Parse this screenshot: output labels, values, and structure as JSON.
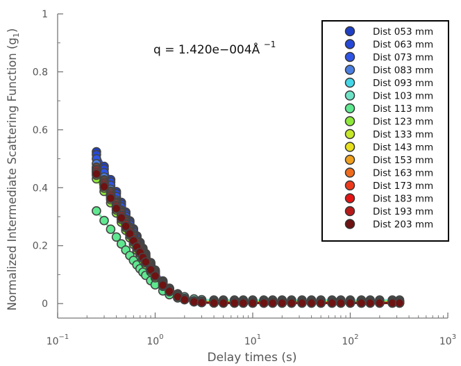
{
  "chart_data": {
    "type": "line",
    "xlabel": "Delay times (s)",
    "ylabel_main": "Normalized Intermediate Scattering Function (g",
    "ylabel_sub": "1",
    "ylabel_close": ")",
    "annotation_main": "q = 1.420e−004Å ",
    "annotation_sup": "−1",
    "xscale": "log",
    "xlim": [
      0.1,
      1000
    ],
    "ylim": [
      -0.05,
      1.0
    ],
    "x_ticks": [
      {
        "value": 0.1,
        "base": "10",
        "exp": "−1"
      },
      {
        "value": 1,
        "base": "10",
        "exp": "0"
      },
      {
        "value": 10,
        "base": "10",
        "exp": "1"
      },
      {
        "value": 100,
        "base": "10",
        "exp": "2"
      },
      {
        "value": 1000,
        "base": "10",
        "exp": "3"
      }
    ],
    "y_ticks": [
      {
        "value": 0,
        "label": "0"
      },
      {
        "value": 0.2,
        "label": "0.2"
      },
      {
        "value": 0.4,
        "label": "0.4"
      },
      {
        "value": 0.6,
        "label": "0.6"
      },
      {
        "value": 0.8,
        "label": "0.8"
      },
      {
        "value": 1,
        "label": "1"
      }
    ],
    "legend_position": "top-right",
    "x": [
      0.25,
      0.3,
      0.35,
      0.4,
      0.45,
      0.5,
      0.55,
      0.6,
      0.65,
      0.7,
      0.75,
      0.8,
      0.9,
      1.0,
      1.2,
      1.4,
      1.7,
      2.0,
      2.5,
      3.0,
      4.0,
      5.0,
      6.5,
      8.0,
      10,
      13,
      16,
      20,
      25,
      32,
      40,
      50,
      65,
      80,
      100,
      130,
      160,
      200,
      270,
      320
    ],
    "series": [
      {
        "name": "Dist 053 mm",
        "color": "#1e3fc4",
        "t0": 0.521,
        "tau": 0.49,
        "tail": 0.003
      },
      {
        "name": "Dist 063 mm",
        "color": "#2548d8",
        "t0": 0.511,
        "tau": 0.49,
        "tail": 0.003
      },
      {
        "name": "Dist 073 mm",
        "color": "#2f55e6",
        "t0": 0.496,
        "tau": 0.49,
        "tail": 0.004
      },
      {
        "name": "Dist 083 mm",
        "color": "#4a7fe0",
        "t0": 0.478,
        "tau": 0.49,
        "tail": 0.005
      },
      {
        "name": "Dist 093 mm",
        "color": "#45d6e8",
        "t0": 0.458,
        "tau": 0.48,
        "tail": 0.008
      },
      {
        "name": "Dist 103 mm",
        "color": "#6fe2c6",
        "t0": 0.442,
        "tau": 0.48,
        "tail": 0.012
      },
      {
        "name": "Dist 113 mm",
        "color": "#5fe890",
        "t0": 0.312,
        "tau": 0.44,
        "tail": 0.008
      },
      {
        "name": "Dist 123 mm",
        "color": "#8ee83a",
        "t0": 0.425,
        "tau": 0.46,
        "tail": 0.006
      },
      {
        "name": "Dist 133 mm",
        "color": "#c5e82a",
        "t0": 0.438,
        "tau": 0.47,
        "tail": 0.005
      },
      {
        "name": "Dist 143 mm",
        "color": "#e8e01e",
        "t0": 0.452,
        "tau": 0.49,
        "tail": 0.004
      },
      {
        "name": "Dist 153 mm",
        "color": "#f0a01e",
        "t0": 0.468,
        "tau": 0.51,
        "tail": 0.003
      },
      {
        "name": "Dist 163 mm",
        "color": "#ef6a1c",
        "t0": 0.466,
        "tau": 0.5,
        "tail": 0.003
      },
      {
        "name": "Dist 173 mm",
        "color": "#ee3a1c",
        "t0": 0.462,
        "tau": 0.5,
        "tail": 0.002
      },
      {
        "name": "Dist 183 mm",
        "color": "#e41414",
        "t0": 0.458,
        "tau": 0.49,
        "tail": 0.002
      },
      {
        "name": "Dist 193 mm",
        "color": "#b81a1a",
        "t0": 0.452,
        "tau": 0.49,
        "tail": 0.002
      },
      {
        "name": "Dist 203 mm",
        "color": "#6e1212",
        "t0": 0.446,
        "tau": 0.48,
        "tail": 0.002
      }
    ]
  }
}
